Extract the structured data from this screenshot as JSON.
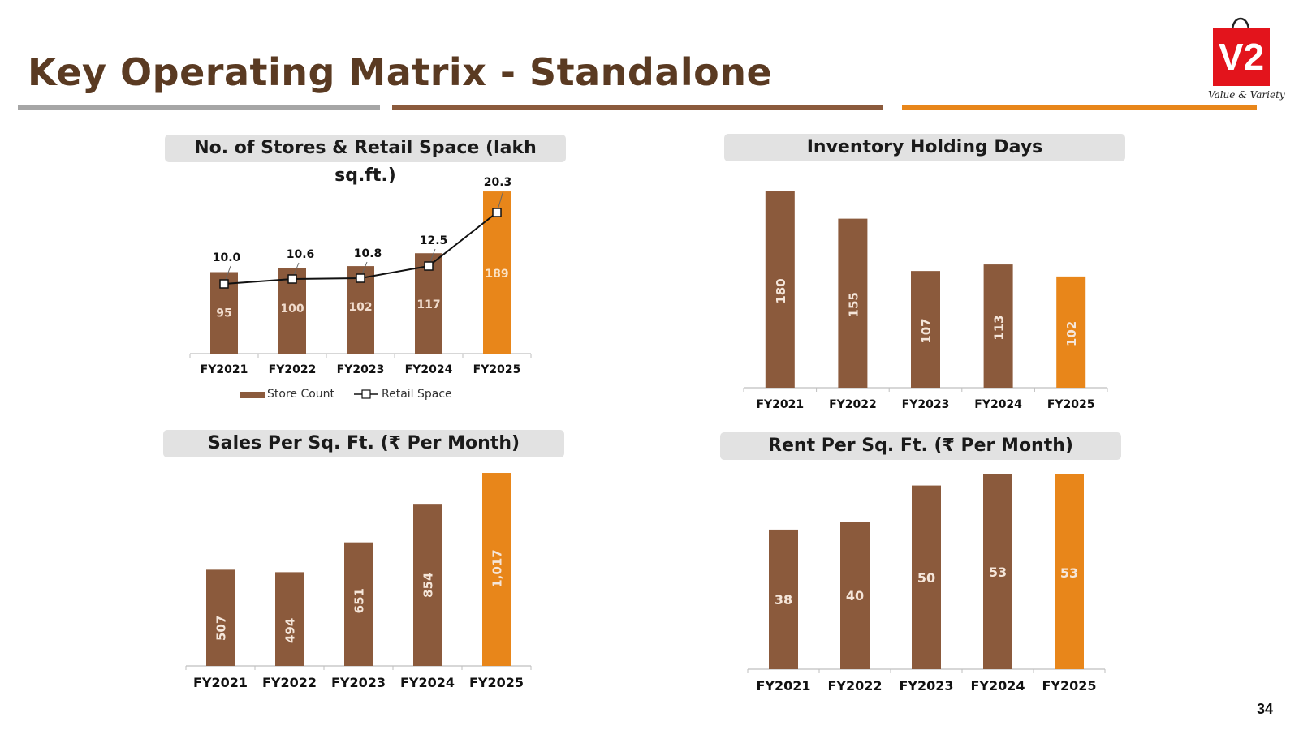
{
  "page": {
    "title": "Key Operating Matrix - Standalone",
    "page_number": "34",
    "logo": {
      "text": "V2",
      "tagline": "Value & Variety"
    },
    "colors": {
      "brown": "#8b5a3c",
      "orange": "#e8861a",
      "grey_rule": "#a6a6a6",
      "title": "#5a3a22"
    }
  },
  "chart_data": [
    {
      "type": "bar",
      "title": "No. of Stores & Retail Space (lakh sq.ft.)",
      "categories": [
        "FY2021",
        "FY2022",
        "FY2023",
        "FY2024",
        "FY2025"
      ],
      "series": [
        {
          "name": "Store Count",
          "type": "bar",
          "values": [
            95,
            100,
            102,
            117,
            189
          ],
          "labels": [
            "95",
            "100",
            "102",
            "117",
            "189"
          ]
        },
        {
          "name": "Retail Space",
          "type": "line",
          "values": [
            10.0,
            10.6,
            10.8,
            12.5,
            20.3
          ],
          "labels": [
            "10.0",
            "10.6",
            "10.8",
            "12.5",
            "20.3"
          ]
        }
      ],
      "legend": "bottom",
      "highlight_last": true
    },
    {
      "type": "bar",
      "title": "Inventory Holding Days",
      "categories": [
        "FY2021",
        "FY2022",
        "FY2023",
        "FY2024",
        "FY2025"
      ],
      "values": [
        180,
        155,
        107,
        113,
        102
      ],
      "labels": [
        "180",
        "155",
        "107",
        "113",
        "102"
      ],
      "label_orientation": "vertical",
      "highlight_last": true
    },
    {
      "type": "bar",
      "title": "Sales Per Sq. Ft. (₹ Per Month)",
      "categories": [
        "FY2021",
        "FY2022",
        "FY2023",
        "FY2024",
        "FY2025"
      ],
      "values": [
        507,
        494,
        651,
        854,
        1017
      ],
      "labels": [
        "507",
        "494",
        "651",
        "854",
        "1,017"
      ],
      "label_orientation": "vertical",
      "highlight_last": true
    },
    {
      "type": "bar",
      "title": "Rent Per Sq. Ft. (₹ Per Month)",
      "categories": [
        "FY2021",
        "FY2022",
        "FY2023",
        "FY2024",
        "FY2025"
      ],
      "values": [
        38,
        40,
        50,
        53,
        53
      ],
      "labels": [
        "38",
        "40",
        "50",
        "53",
        "53"
      ],
      "label_orientation": "horizontal",
      "highlight_last": true
    }
  ]
}
